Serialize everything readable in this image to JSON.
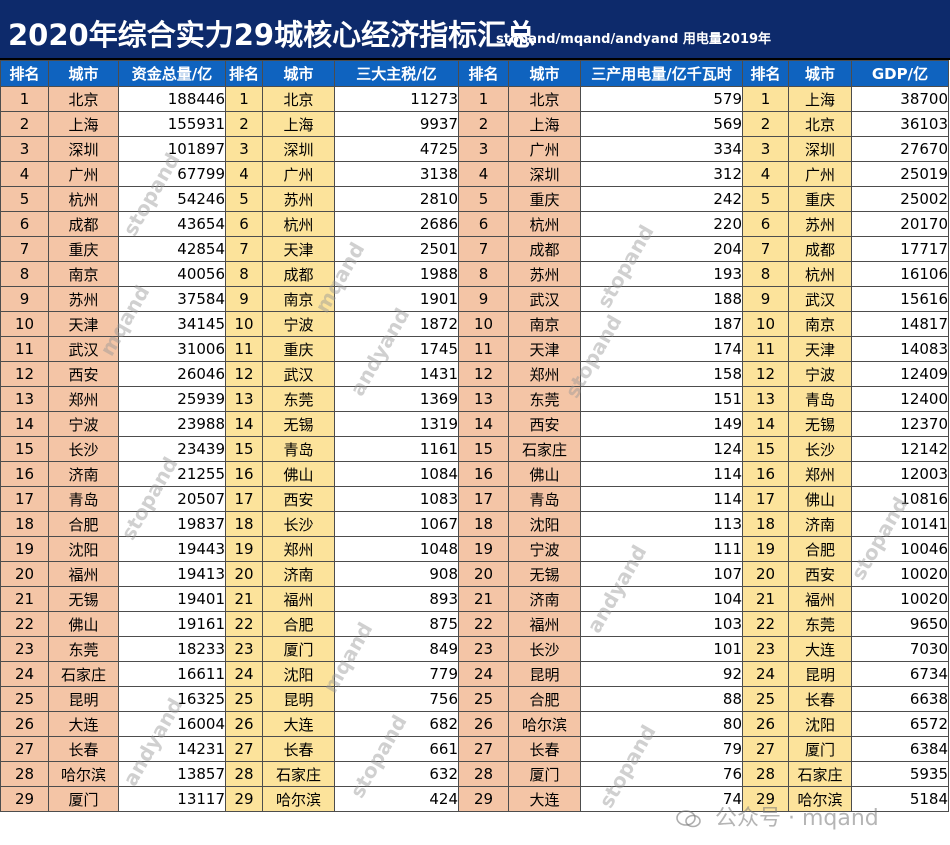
{
  "title": "2020年综合实力29城核心经济指标汇总",
  "subtitle": "stopand/mqand/andyand 用电量2019年",
  "headers": [
    "排名",
    "城市",
    "资金总量/亿",
    "排名",
    "城市",
    "三大主税/亿",
    "排名",
    "城市",
    "三产用电量/亿千瓦时",
    "排名",
    "城市",
    "GDP/亿"
  ],
  "rows": [
    [
      1,
      "北京",
      188446,
      1,
      "北京",
      11273,
      1,
      "北京",
      579,
      1,
      "上海",
      38700
    ],
    [
      2,
      "上海",
      155931,
      2,
      "上海",
      9937,
      2,
      "上海",
      569,
      2,
      "北京",
      36103
    ],
    [
      3,
      "深圳",
      101897,
      3,
      "深圳",
      4725,
      3,
      "广州",
      334,
      3,
      "深圳",
      27670
    ],
    [
      4,
      "广州",
      67799,
      4,
      "广州",
      3138,
      4,
      "深圳",
      312,
      4,
      "广州",
      25019
    ],
    [
      5,
      "杭州",
      54246,
      5,
      "苏州",
      2810,
      5,
      "重庆",
      242,
      5,
      "重庆",
      25002
    ],
    [
      6,
      "成都",
      43654,
      6,
      "杭州",
      2686,
      6,
      "杭州",
      220,
      6,
      "苏州",
      20170
    ],
    [
      7,
      "重庆",
      42854,
      7,
      "天津",
      2501,
      7,
      "成都",
      204,
      7,
      "成都",
      17717
    ],
    [
      8,
      "南京",
      40056,
      8,
      "成都",
      1988,
      8,
      "苏州",
      193,
      8,
      "杭州",
      16106
    ],
    [
      9,
      "苏州",
      37584,
      9,
      "南京",
      1901,
      9,
      "武汉",
      188,
      9,
      "武汉",
      15616
    ],
    [
      10,
      "天津",
      34145,
      10,
      "宁波",
      1872,
      10,
      "南京",
      187,
      10,
      "南京",
      14817
    ],
    [
      11,
      "武汉",
      31006,
      11,
      "重庆",
      1745,
      11,
      "天津",
      174,
      11,
      "天津",
      14083
    ],
    [
      12,
      "西安",
      26046,
      12,
      "武汉",
      1431,
      12,
      "郑州",
      158,
      12,
      "宁波",
      12409
    ],
    [
      13,
      "郑州",
      25939,
      13,
      "东莞",
      1369,
      13,
      "东莞",
      151,
      13,
      "青岛",
      12400
    ],
    [
      14,
      "宁波",
      23988,
      14,
      "无锡",
      1319,
      14,
      "西安",
      149,
      14,
      "无锡",
      12370
    ],
    [
      15,
      "长沙",
      23439,
      15,
      "青岛",
      1161,
      15,
      "石家庄",
      124,
      15,
      "长沙",
      12142
    ],
    [
      16,
      "济南",
      21255,
      16,
      "佛山",
      1084,
      16,
      "佛山",
      114,
      16,
      "郑州",
      12003
    ],
    [
      17,
      "青岛",
      20507,
      17,
      "西安",
      1083,
      17,
      "青岛",
      114,
      17,
      "佛山",
      10816
    ],
    [
      18,
      "合肥",
      19837,
      18,
      "长沙",
      1067,
      18,
      "沈阳",
      113,
      18,
      "济南",
      10141
    ],
    [
      19,
      "沈阳",
      19443,
      19,
      "郑州",
      1048,
      19,
      "宁波",
      111,
      19,
      "合肥",
      10046
    ],
    [
      20,
      "福州",
      19413,
      20,
      "济南",
      908,
      20,
      "无锡",
      107,
      20,
      "西安",
      10020
    ],
    [
      21,
      "无锡",
      19401,
      21,
      "福州",
      893,
      21,
      "济南",
      104,
      21,
      "福州",
      10020
    ],
    [
      22,
      "佛山",
      19161,
      22,
      "合肥",
      875,
      22,
      "福州",
      103,
      22,
      "东莞",
      9650
    ],
    [
      23,
      "东莞",
      18233,
      23,
      "厦门",
      849,
      23,
      "长沙",
      101,
      23,
      "大连",
      7030
    ],
    [
      24,
      "石家庄",
      16611,
      24,
      "沈阳",
      779,
      24,
      "昆明",
      92,
      24,
      "昆明",
      6734
    ],
    [
      25,
      "昆明",
      16325,
      25,
      "昆明",
      756,
      25,
      "合肥",
      88,
      25,
      "长春",
      6638
    ],
    [
      26,
      "大连",
      16004,
      26,
      "大连",
      682,
      26,
      "哈尔滨",
      80,
      26,
      "沈阳",
      6572
    ],
    [
      27,
      "长春",
      14231,
      27,
      "长春",
      661,
      27,
      "长春",
      79,
      27,
      "厦门",
      6384
    ],
    [
      28,
      "哈尔滨",
      13857,
      28,
      "石家庄",
      632,
      28,
      "厦门",
      76,
      28,
      "石家庄",
      5935
    ],
    [
      29,
      "厦门",
      13117,
      29,
      "哈尔滨",
      424,
      29,
      "大连",
      74,
      29,
      "哈尔滨",
      5184
    ]
  ],
  "watermarks": [
    "stopand",
    "mqand",
    "andyand"
  ],
  "brand": "公众号 · mqand",
  "colors": {
    "header_bg": "#0d2a6b",
    "column_header_bg": "#0f63bf",
    "rank_bg_a": "#f4c5a6",
    "rank_bg_b": "#fce39b"
  }
}
